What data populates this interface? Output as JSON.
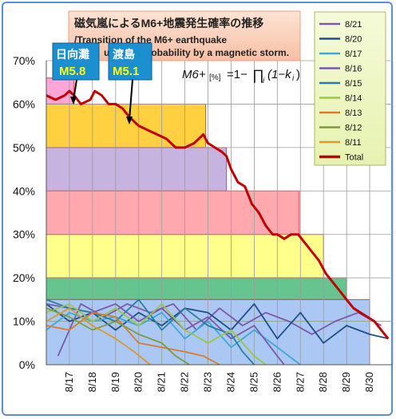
{
  "chart_data": {
    "type": "line",
    "title_ja": "磁気嵐によるM6+地震発生確率の推移",
    "title_en": "/Transition of the M6+ earthquake occurrence probability by a magnetic storm.",
    "title_en_visible": "/Transition of the M6+ earthquake",
    "title_en_visible_2": "urrence probability by a magnetic storm.",
    "formula": {
      "prefix": "M6+",
      "sub": "[%]",
      "rhs": "=1−",
      "prod": "∏",
      "idx": "i",
      "tail": "(1−k",
      "tailidx": "i",
      "close": ")"
    },
    "ylim": [
      0,
      70
    ],
    "yticks": [
      "0%",
      "10%",
      "20%",
      "30%",
      "40%",
      "50%",
      "60%",
      "70%"
    ],
    "xticks": [
      "8/17",
      "8/18",
      "8/19",
      "8/20",
      "8/21",
      "8/22",
      "8/23",
      "8/24",
      "8/25",
      "8/26",
      "8/27",
      "8/28",
      "8/29",
      "8/30"
    ],
    "grid": true,
    "legend_position": "top-right",
    "annotations": [
      {
        "place": "日向灘",
        "mag": "M5.8",
        "x": 18.0,
        "y": 61
      },
      {
        "place": "渡島",
        "mag": "M5.1",
        "x": 19.5,
        "y": 54
      }
    ],
    "bands": [
      {
        "x0": 16.0,
        "x1": 17.2,
        "top": 66,
        "color": "#ff88cc"
      },
      {
        "x0": 16.0,
        "x1": 22.9,
        "top": 60,
        "color": "#ffc000"
      },
      {
        "x0": 16.0,
        "x1": 23.8,
        "top": 50,
        "color": "#b49ad6"
      },
      {
        "x0": 16.0,
        "x1": 26.95,
        "top": 40,
        "color": "#ff8c94"
      },
      {
        "x0": 16.0,
        "x1": 28.0,
        "top": 30,
        "color": "#ffff66"
      },
      {
        "x0": 16.0,
        "x1": 29.0,
        "top": 20,
        "color": "#33b06a"
      },
      {
        "x0": 16.0,
        "x1": 30.0,
        "top": 15,
        "color": "#8fb6f0"
      }
    ],
    "series": [
      {
        "name": "8/21",
        "color": "#7a5aa8",
        "x": [
          16.5,
          17.5,
          18.5,
          19.5,
          20.5,
          21.5,
          22.5,
          23.5,
          24.5,
          25.5,
          26.5,
          27.5,
          28.5,
          29.5,
          30.5
        ],
        "values": [
          2,
          14,
          11,
          14,
          12,
          14,
          8,
          13,
          9,
          12,
          10,
          7,
          10,
          12,
          9
        ]
      },
      {
        "name": "8/20",
        "color": "#1f4e8c",
        "x": [
          16.0,
          17.0,
          18.0,
          19.0,
          20.0,
          21.0,
          22.0,
          23.0,
          24.0,
          25.0,
          26.0,
          27.0,
          28.0,
          29.0,
          30.0,
          30.8
        ],
        "values": [
          14,
          10,
          12,
          8,
          12,
          9,
          13,
          12,
          8,
          14,
          6,
          12,
          5,
          9,
          7,
          6
        ]
      },
      {
        "name": "8/17",
        "color": "#3aa9d6",
        "x": [
          16.0,
          17.0,
          18.0,
          19.0,
          20.0,
          21.0,
          22.0,
          23.0,
          24.0,
          25.0,
          26.0,
          26.5,
          27.0
        ],
        "values": [
          8,
          12,
          10,
          11,
          9,
          12,
          6,
          10,
          4,
          8,
          4,
          2,
          0
        ]
      },
      {
        "name": "8/16",
        "color": "#7a5aa8",
        "x": [
          16.0,
          17.0,
          18.0,
          19.0,
          20.0,
          21.0,
          22.0,
          23.0,
          24.0,
          25.0,
          26.0,
          26.3
        ],
        "values": [
          14,
          13,
          12,
          14,
          10,
          13,
          8,
          11,
          6,
          9,
          2,
          0
        ]
      },
      {
        "name": "8/15",
        "color": "#2a7fa0",
        "x": [
          16.0,
          17.0,
          18.0,
          19.0,
          20.0,
          21.0,
          22.0,
          23.0,
          24.0,
          24.5,
          25.0
        ],
        "values": [
          15,
          13,
          12,
          10,
          15,
          8,
          13,
          9,
          7,
          3,
          0
        ]
      },
      {
        "name": "8/14",
        "color": "#98c64a",
        "x": [
          16.0,
          17.0,
          18.0,
          19.0,
          20.0,
          21.0,
          22.0,
          23.0,
          24.0,
          25.0,
          25.5
        ],
        "values": [
          12,
          14,
          10,
          13,
          9,
          14,
          8,
          5,
          8,
          2,
          0
        ]
      },
      {
        "name": "8/13",
        "color": "#d87c2c",
        "x": [
          16.0,
          17.0,
          18.0,
          19.0,
          20.0,
          21.0,
          22.0,
          22.8,
          23.5
        ],
        "values": [
          9,
          8,
          12,
          11,
          5,
          4,
          3,
          2,
          0
        ]
      },
      {
        "name": "8/12",
        "color": "#7f9a3a",
        "x": [
          16.0,
          17.0,
          18.0,
          19.0,
          20.0,
          21.0,
          21.6,
          22.2
        ],
        "values": [
          13,
          11,
          8,
          10,
          7,
          5,
          2,
          0
        ]
      },
      {
        "name": "8/11",
        "color": "#d89a2c",
        "x": [
          16.0,
          17.0,
          18.0,
          19.0,
          19.8,
          20.5
        ],
        "values": [
          10,
          13,
          9,
          6,
          3,
          0
        ]
      },
      {
        "name": "Total",
        "color": "#c00000",
        "x": [
          16.0,
          16.4,
          16.8,
          17.0,
          17.2,
          17.5,
          17.9,
          18.1,
          18.4,
          18.7,
          19.0,
          19.3,
          19.6,
          20.0,
          20.4,
          20.8,
          21.2,
          21.6,
          22.0,
          22.4,
          22.8,
          23.0,
          23.3,
          23.6,
          23.8,
          24.0,
          24.3,
          24.6,
          24.9,
          25.2,
          25.5,
          25.8,
          26.0,
          26.3,
          26.6,
          26.9,
          27.2,
          27.5,
          27.8,
          28.1,
          28.4,
          28.7,
          29.0,
          29.3,
          29.6,
          29.9,
          30.2,
          30.5,
          30.8
        ],
        "values": [
          62,
          61,
          62,
          63,
          62,
          60,
          61,
          63,
          62,
          60,
          60,
          59,
          57,
          55,
          54,
          53,
          52,
          50,
          50,
          51,
          53,
          51,
          50,
          49,
          48,
          45,
          42,
          41,
          37,
          35,
          32,
          30,
          30,
          29,
          30,
          30,
          28,
          26,
          24,
          21,
          19,
          17,
          15,
          13,
          12,
          11,
          10,
          8,
          6
        ]
      }
    ]
  }
}
